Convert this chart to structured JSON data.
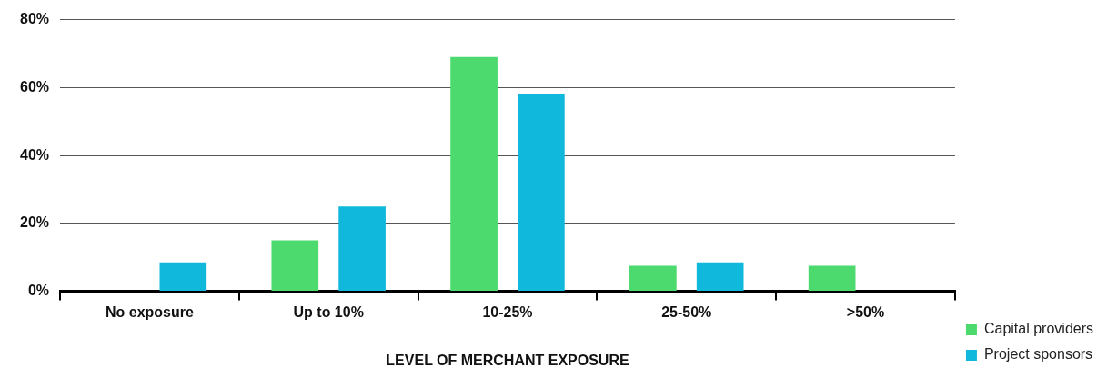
{
  "chart_data": {
    "type": "bar",
    "xlabel": "LEVEL OF MERCHANT EXPOSURE",
    "categories": [
      "No exposure",
      "Up to 10%",
      "10-25%",
      "25-50%",
      ">50%"
    ],
    "series": [
      {
        "name": "Capital providers",
        "color": "#4cd96e",
        "values": [
          0,
          15,
          69,
          7.5,
          7.5
        ]
      },
      {
        "name": "Project sponsors",
        "color": "#10b9dc",
        "values": [
          8.5,
          25,
          58,
          8.5,
          0
        ]
      }
    ],
    "ylim": [
      0,
      80
    ],
    "yticks": [
      {
        "value": 0,
        "label": "0%"
      },
      {
        "value": 20,
        "label": "20%"
      },
      {
        "value": 40,
        "label": "40%"
      },
      {
        "value": 60,
        "label": "60%"
      },
      {
        "value": 80,
        "label": "80%"
      }
    ],
    "grid": "y",
    "legend": "bottom right"
  }
}
